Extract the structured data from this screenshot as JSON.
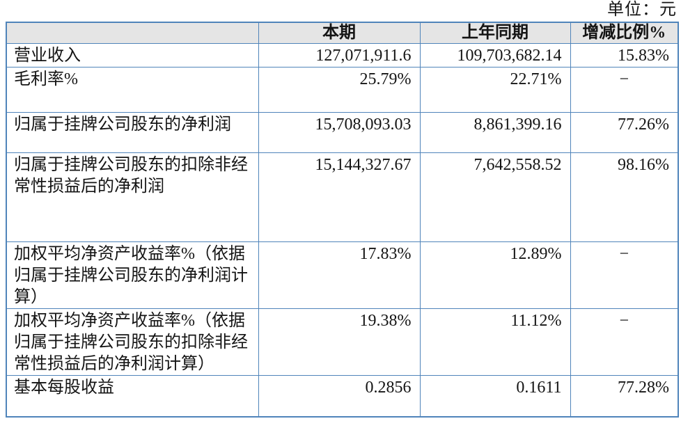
{
  "unit_label": "单位：元",
  "colors": {
    "border": "#4f84ba",
    "header_bg": "#e5e5e5",
    "text": "#141414"
  },
  "table": {
    "columns": [
      {
        "key": "label",
        "label": ""
      },
      {
        "key": "current",
        "label": "本期"
      },
      {
        "key": "prior",
        "label": "上年同期"
      },
      {
        "key": "change",
        "label": "增减比例%"
      }
    ],
    "rows": [
      {
        "label": "营业收入",
        "current": "127,071,911.6",
        "prior": "109,703,682.14",
        "change": "15.83%"
      },
      {
        "label": "毛利率%",
        "current": "25.79%",
        "prior": "22.71%",
        "change": "−"
      },
      {
        "label": "归属于挂牌公司股东的净利润",
        "current": "15,708,093.03",
        "prior": "8,861,399.16",
        "change": "77.26%"
      },
      {
        "label": "归属于挂牌公司股东的扣除非经常性损益后的净利润",
        "current": "15,144,327.67",
        "prior": "7,642,558.52",
        "change": "98.16%"
      },
      {
        "label": "加权平均净资产收益率%（依据归属于挂牌公司股东的净利润计算）",
        "current": "17.83%",
        "prior": "12.89%",
        "change": "−"
      },
      {
        "label": "加权平均净资产收益率%（依据归属于挂牌公司股东的扣除非经常性损益后的净利润计算）",
        "current": "19.38%",
        "prior": "11.12%",
        "change": "−"
      },
      {
        "label": "基本每股收益",
        "current": "0.2856",
        "prior": "0.1611",
        "change": "77.28%"
      }
    ]
  }
}
